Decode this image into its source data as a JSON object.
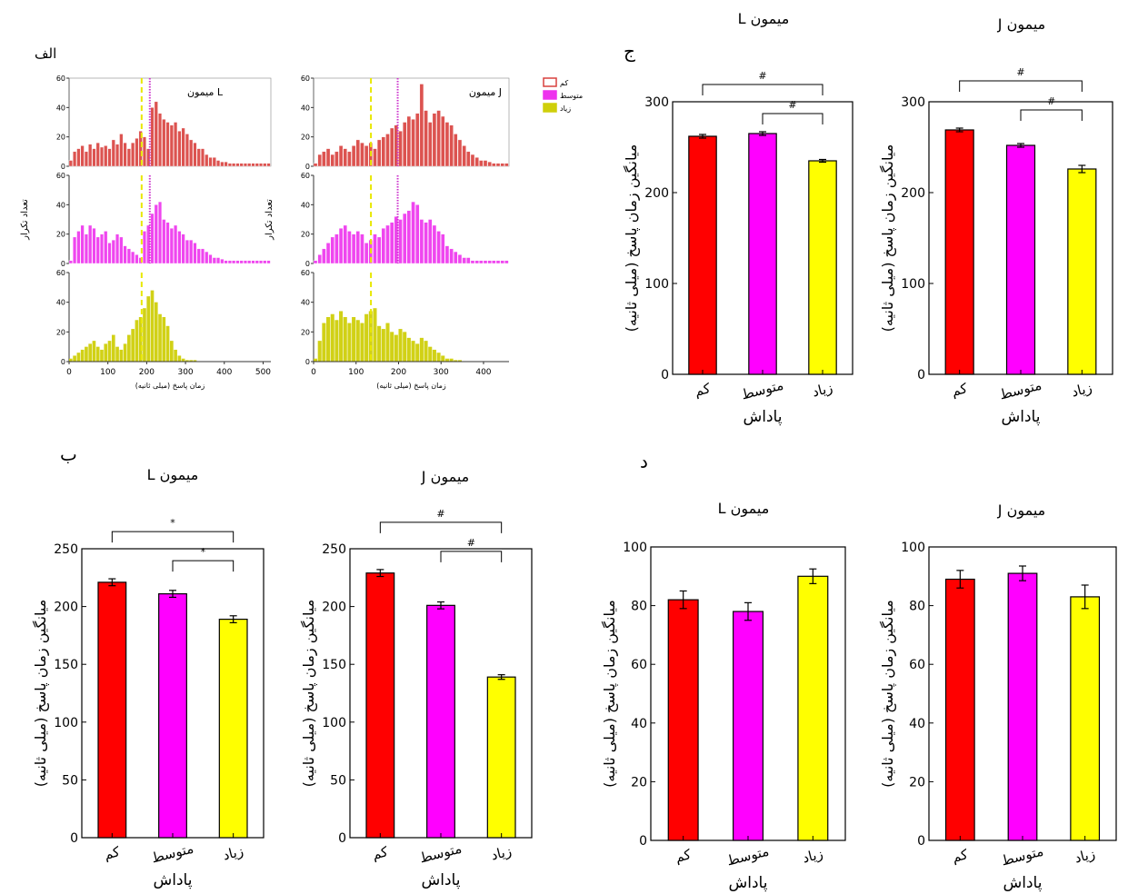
{
  "panel_labels": {
    "a": "الف",
    "b": "ب",
    "c": "ج",
    "d": "د"
  },
  "colors": {
    "low": "#ff0000",
    "mid": "#ff00ff",
    "high": "#ffff00",
    "hist_low": "#d9413e",
    "hist_mid": "#ee33ee",
    "hist_high": "#cfcf0a"
  },
  "chart_data": [
    {
      "id": "hist-L",
      "panel": "الف",
      "type": "bar",
      "title": "میمون L",
      "xlabel": "زمان پاسخ (میلی ثانیه)",
      "ylabel": "تعداد تکرار",
      "xlim": [
        0,
        520
      ],
      "xticks": [
        0,
        100,
        200,
        300,
        400,
        500
      ],
      "ylim": [
        0,
        60
      ],
      "yticks": [
        0,
        20,
        40,
        60
      ],
      "legend": {
        "position": "top-right",
        "labels": [
          "کم",
          "متوسط",
          "زیاد"
        ]
      },
      "bin_width": 10,
      "series": [
        {
          "name": "کم",
          "means_line": {
            "dashed": 187,
            "dotted": 208
          },
          "values": [
            4,
            10,
            12,
            14,
            10,
            15,
            12,
            16,
            13,
            14,
            12,
            18,
            15,
            22,
            16,
            12,
            16,
            19,
            24,
            20,
            12,
            40,
            44,
            36,
            32,
            30,
            28,
            30,
            24,
            26,
            22,
            18,
            16,
            12,
            12,
            8,
            6,
            6,
            4,
            3,
            3,
            2,
            2,
            2,
            2,
            2,
            2,
            2,
            2,
            2,
            2,
            2
          ]
        },
        {
          "name": "متوسط",
          "means_line": {
            "dashed": 187,
            "dotted": 208
          },
          "values": [
            2,
            18,
            22,
            26,
            20,
            26,
            24,
            18,
            20,
            22,
            14,
            16,
            20,
            18,
            12,
            10,
            8,
            6,
            4,
            22,
            26,
            34,
            40,
            42,
            30,
            28,
            24,
            26,
            22,
            20,
            16,
            16,
            14,
            10,
            10,
            8,
            6,
            4,
            4,
            3,
            2,
            2,
            2,
            2,
            2,
            2,
            2,
            2,
            2,
            2,
            2,
            2
          ]
        },
        {
          "name": "زیاد",
          "means_line": {
            "dashed": 187
          },
          "values": [
            2,
            4,
            6,
            8,
            10,
            12,
            14,
            10,
            8,
            12,
            14,
            18,
            10,
            8,
            12,
            18,
            22,
            28,
            30,
            36,
            44,
            48,
            40,
            32,
            30,
            24,
            14,
            8,
            4,
            2,
            1,
            1,
            1,
            0,
            0,
            0,
            0,
            0,
            0,
            0,
            0,
            0,
            0,
            0,
            0,
            0,
            0,
            0,
            0,
            0,
            0,
            0
          ]
        }
      ]
    },
    {
      "id": "hist-J",
      "panel": "الف",
      "type": "bar",
      "title": "میمون J",
      "xlabel": "زمان پاسخ (میلی ثانیه)",
      "ylabel": "تعداد تکرار",
      "xlim": [
        0,
        460
      ],
      "xticks": [
        0,
        100,
        200,
        300,
        400
      ],
      "ylim": [
        0,
        60
      ],
      "yticks": [
        0,
        20,
        40,
        60
      ],
      "bin_width": 10,
      "series": [
        {
          "name": "کم",
          "means_line": {
            "dashed": 135,
            "dotted": 198
          },
          "values": [
            2,
            8,
            10,
            12,
            8,
            10,
            14,
            12,
            10,
            14,
            18,
            16,
            14,
            16,
            12,
            18,
            20,
            22,
            26,
            28,
            24,
            30,
            34,
            32,
            36,
            56,
            38,
            30,
            36,
            38,
            34,
            30,
            28,
            22,
            18,
            14,
            10,
            8,
            6,
            4,
            4,
            3,
            2,
            2,
            2,
            2
          ]
        },
        {
          "name": "متوسط",
          "means_line": {
            "dashed": 135,
            "dotted": 198
          },
          "values": [
            2,
            6,
            10,
            14,
            18,
            20,
            24,
            26,
            22,
            20,
            22,
            20,
            14,
            16,
            20,
            18,
            24,
            26,
            28,
            32,
            30,
            34,
            36,
            42,
            40,
            30,
            28,
            30,
            26,
            22,
            20,
            12,
            10,
            8,
            6,
            4,
            4,
            2,
            2,
            2,
            2,
            2,
            2,
            2,
            2,
            2
          ]
        },
        {
          "name": "زیاد",
          "means_line": {
            "dashed": 135
          },
          "values": [
            2,
            14,
            26,
            30,
            32,
            28,
            34,
            30,
            26,
            30,
            28,
            26,
            32,
            34,
            36,
            24,
            22,
            26,
            20,
            18,
            22,
            20,
            16,
            14,
            12,
            16,
            14,
            10,
            8,
            6,
            4,
            2,
            2,
            1,
            1,
            0,
            0,
            0,
            0,
            0,
            0,
            0,
            0,
            0,
            0,
            0
          ]
        }
      ]
    },
    {
      "id": "c-L",
      "panel": "ج",
      "type": "bar",
      "title": "میمون L",
      "xlabel": "پاداش",
      "ylabel": "میانگین زمان پاسخ (میلی ثانیه)",
      "categories": [
        "کم",
        "متوسط",
        "زیاد"
      ],
      "values": [
        262,
        265,
        235
      ],
      "errors": [
        2,
        2,
        1.5
      ],
      "ylim": [
        0,
        300
      ],
      "yticks": [
        0,
        100,
        200,
        300
      ],
      "significance": [
        {
          "from": 0,
          "to": 2,
          "label": "#"
        },
        {
          "from": 1,
          "to": 2,
          "label": "#"
        }
      ]
    },
    {
      "id": "c-J",
      "panel": "ج",
      "type": "bar",
      "title": "میمون J",
      "xlabel": "پاداش",
      "ylabel": "میانگین زمان پاسخ (میلی ثانیه)",
      "categories": [
        "کم",
        "متوسط",
        "زیاد"
      ],
      "values": [
        269,
        252,
        226
      ],
      "errors": [
        2,
        2,
        4
      ],
      "ylim": [
        0,
        300
      ],
      "yticks": [
        0,
        100,
        200,
        300
      ],
      "significance": [
        {
          "from": 0,
          "to": 2,
          "label": "#"
        },
        {
          "from": 1,
          "to": 2,
          "label": "#"
        }
      ]
    },
    {
      "id": "b-L",
      "panel": "ب",
      "type": "bar",
      "title": "میمون L",
      "xlabel": "پاداش",
      "ylabel": "میانگین زمان پاسخ (میلی ثانیه)",
      "categories": [
        "کم",
        "متوسط",
        "زیاد"
      ],
      "values": [
        221,
        211,
        189
      ],
      "errors": [
        3,
        3,
        3
      ],
      "ylim": [
        0,
        250
      ],
      "yticks": [
        0,
        50,
        100,
        150,
        200,
        250
      ],
      "significance": [
        {
          "from": 0,
          "to": 2,
          "label": "*"
        },
        {
          "from": 1,
          "to": 2,
          "label": "*"
        }
      ]
    },
    {
      "id": "b-J",
      "panel": "ب",
      "type": "bar",
      "title": "میمون J",
      "xlabel": "پاداش",
      "ylabel": "میانگین زمان پاسخ (میلی ثانیه)",
      "categories": [
        "کم",
        "متوسط",
        "زیاد"
      ],
      "values": [
        229,
        201,
        139
      ],
      "errors": [
        3,
        3,
        2
      ],
      "ylim": [
        0,
        250
      ],
      "yticks": [
        0,
        50,
        100,
        150,
        200,
        250
      ],
      "significance": [
        {
          "from": 0,
          "to": 2,
          "label": "#"
        },
        {
          "from": 1,
          "to": 2,
          "label": "#"
        }
      ]
    },
    {
      "id": "d-L",
      "panel": "د",
      "type": "bar",
      "title": "میمون L",
      "xlabel": "پاداش",
      "ylabel": "میانگین زمان پاسخ (میلی ثانیه)",
      "categories": [
        "کم",
        "متوسط",
        "زیاد"
      ],
      "values": [
        82,
        78,
        90
      ],
      "errors": [
        3,
        3,
        2.5
      ],
      "ylim": [
        0,
        100
      ],
      "yticks": [
        0,
        20,
        40,
        60,
        80,
        100
      ],
      "significance": []
    },
    {
      "id": "d-J",
      "panel": "د",
      "type": "bar",
      "title": "میمون J",
      "xlabel": "پاداش",
      "ylabel": "میانگین زمان پاسخ (میلی ثانیه)",
      "categories": [
        "کم",
        "متوسط",
        "زیاد"
      ],
      "values": [
        89,
        91,
        83
      ],
      "errors": [
        3,
        2.5,
        4
      ],
      "ylim": [
        0,
        100
      ],
      "yticks": [
        0,
        20,
        40,
        60,
        80,
        100
      ],
      "significance": []
    }
  ]
}
